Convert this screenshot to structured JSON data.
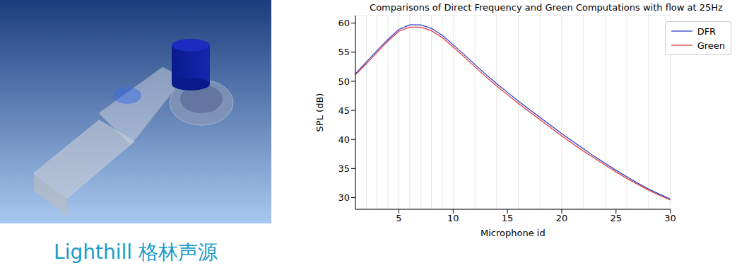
{
  "caption": "Lighthill 格林声源",
  "chart_data": {
    "type": "line",
    "title": "Comparisons of Direct Frequency and Green Computations with flow at 25Hz",
    "x_label": "Microphone id",
    "y_label": "SPL (dB)",
    "x": [
      1,
      2,
      3,
      4,
      5,
      6,
      7,
      8,
      9,
      10,
      11,
      12,
      13,
      14,
      15,
      16,
      17,
      18,
      19,
      20,
      21,
      22,
      23,
      24,
      25,
      26,
      27,
      28,
      29,
      30
    ],
    "series": [
      {
        "name": "DFR",
        "color": "#2233cc",
        "values": [
          51.3,
          53.3,
          55.3,
          57.2,
          58.9,
          59.7,
          59.7,
          59.1,
          57.9,
          56.3,
          54.6,
          52.9,
          51.2,
          49.6,
          48.1,
          46.6,
          45.2,
          43.8,
          42.4,
          41.0,
          39.7,
          38.4,
          37.1,
          35.9,
          34.7,
          33.6,
          32.5,
          31.5,
          30.6,
          29.8
        ]
      },
      {
        "name": "Green",
        "color": "#dd3333",
        "values": [
          51.1,
          53.0,
          55.0,
          56.9,
          58.6,
          59.3,
          59.3,
          58.7,
          57.5,
          55.9,
          54.2,
          52.5,
          50.8,
          49.2,
          47.7,
          46.2,
          44.8,
          43.4,
          42.0,
          40.6,
          39.3,
          38.0,
          36.8,
          35.6,
          34.4,
          33.3,
          32.3,
          31.3,
          30.4,
          29.6
        ]
      }
    ],
    "xlim": [
      1,
      30
    ],
    "xticks": [
      5,
      10,
      15,
      20,
      25,
      30
    ],
    "ylim": [
      28,
      61.3
    ],
    "yticks": [
      30,
      35,
      40,
      45,
      50,
      55,
      60
    ],
    "grid": true,
    "legend": "upper right"
  }
}
